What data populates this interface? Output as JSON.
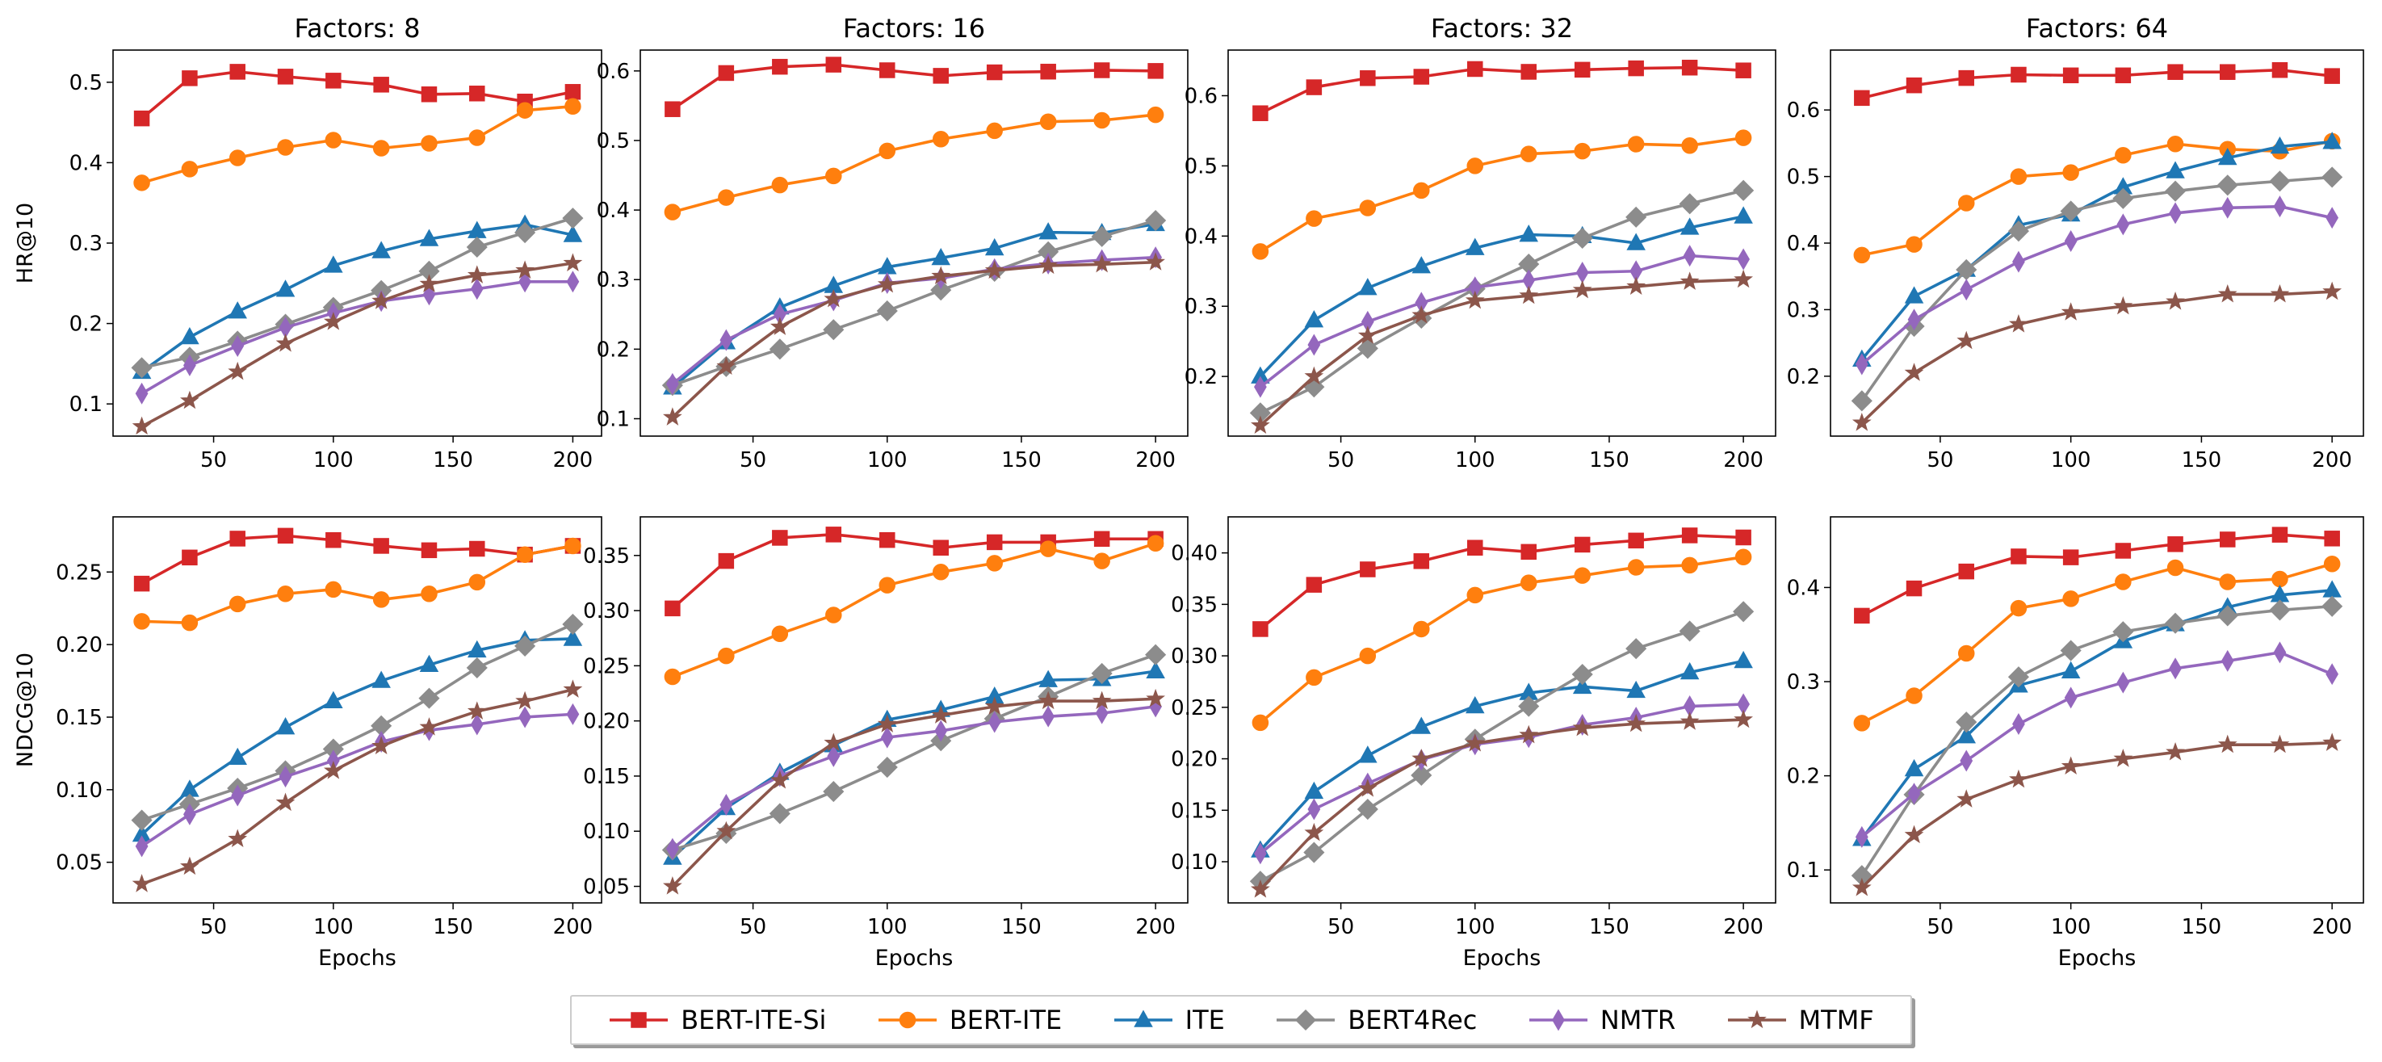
{
  "chart_data": {
    "type": "line",
    "x": [
      20,
      40,
      60,
      80,
      100,
      120,
      140,
      160,
      180,
      200
    ],
    "xlabel": "Epochs",
    "xlim": [
      8,
      212
    ],
    "xticks": [
      50,
      100,
      150,
      200
    ],
    "legend_position": "bottom-center",
    "series_styles": [
      {
        "name": "BERT-ITE-Si",
        "color": "#d62728",
        "marker": "square"
      },
      {
        "name": "BERT-ITE",
        "color": "#ff7f0e",
        "marker": "circle"
      },
      {
        "name": "ITE",
        "color": "#1f77b4",
        "marker": "triangle"
      },
      {
        "name": "BERT4Rec",
        "color": "#8c8c8c",
        "marker": "diamond"
      },
      {
        "name": "NMTR",
        "color": "#9467bd",
        "marker": "thin-diamond"
      },
      {
        "name": "MTMF",
        "color": "#8c564b",
        "marker": "star"
      }
    ],
    "panels": [
      {
        "title": "Factors: 8",
        "ylabel": "HR@10",
        "ylim": [
          0.06,
          0.54
        ],
        "yticks": [
          "0.1",
          "0.2",
          "0.3",
          "0.4",
          "0.5"
        ],
        "series": [
          {
            "name": "BERT-ITE-Si",
            "values": [
              0.455,
              0.505,
              0.513,
              0.507,
              0.502,
              0.497,
              0.485,
              0.486,
              0.476,
              0.488
            ]
          },
          {
            "name": "BERT-ITE",
            "values": [
              0.375,
              0.392,
              0.406,
              0.419,
              0.428,
              0.418,
              0.424,
              0.431,
              0.465,
              0.47
            ]
          },
          {
            "name": "ITE",
            "values": [
              0.14,
              0.183,
              0.215,
              0.242,
              0.272,
              0.29,
              0.305,
              0.315,
              0.323,
              0.31
            ]
          },
          {
            "name": "BERT4Rec",
            "values": [
              0.145,
              0.158,
              0.178,
              0.199,
              0.22,
              0.241,
              0.265,
              0.295,
              0.313,
              0.331
            ]
          },
          {
            "name": "NMTR",
            "values": [
              0.113,
              0.148,
              0.172,
              0.195,
              0.213,
              0.228,
              0.236,
              0.243,
              0.252,
              0.252
            ]
          },
          {
            "name": "MTMF",
            "values": [
              0.072,
              0.104,
              0.14,
              0.175,
              0.202,
              0.228,
              0.249,
              0.26,
              0.266,
              0.275
            ]
          }
        ]
      },
      {
        "title": "Factors: 16",
        "ylabel": "",
        "ylim": [
          0.075,
          0.63
        ],
        "yticks": [
          "0.1",
          "0.2",
          "0.3",
          "0.4",
          "0.5",
          "0.6"
        ],
        "series": [
          {
            "name": "BERT-ITE-Si",
            "values": [
              0.545,
              0.597,
              0.606,
              0.609,
              0.601,
              0.593,
              0.598,
              0.599,
              0.601,
              0.6
            ]
          },
          {
            "name": "BERT-ITE",
            "values": [
              0.397,
              0.418,
              0.436,
              0.449,
              0.485,
              0.502,
              0.514,
              0.527,
              0.529,
              0.537
            ]
          },
          {
            "name": "ITE",
            "values": [
              0.145,
              0.21,
              0.26,
              0.291,
              0.318,
              0.331,
              0.345,
              0.368,
              0.367,
              0.38
            ]
          },
          {
            "name": "BERT4Rec",
            "values": [
              0.148,
              0.175,
              0.2,
              0.228,
              0.255,
              0.285,
              0.312,
              0.34,
              0.362,
              0.385
            ]
          },
          {
            "name": "NMTR",
            "values": [
              0.15,
              0.213,
              0.25,
              0.27,
              0.295,
              0.302,
              0.315,
              0.323,
              0.328,
              0.332
            ]
          },
          {
            "name": "MTMF",
            "values": [
              0.102,
              0.175,
              0.232,
              0.272,
              0.293,
              0.305,
              0.313,
              0.32,
              0.322,
              0.325
            ]
          }
        ]
      },
      {
        "title": "Factors: 32",
        "ylabel": "",
        "ylim": [
          0.115,
          0.665
        ],
        "yticks": [
          "0.2",
          "0.3",
          "0.4",
          "0.5",
          "0.6"
        ],
        "series": [
          {
            "name": "BERT-ITE-Si",
            "values": [
              0.575,
              0.612,
              0.625,
              0.627,
              0.638,
              0.634,
              0.637,
              0.639,
              0.64,
              0.636
            ]
          },
          {
            "name": "BERT-ITE",
            "values": [
              0.378,
              0.425,
              0.44,
              0.465,
              0.5,
              0.517,
              0.521,
              0.531,
              0.529,
              0.54
            ]
          },
          {
            "name": "ITE",
            "values": [
              0.2,
              0.28,
              0.326,
              0.357,
              0.383,
              0.402,
              0.4,
              0.39,
              0.412,
              0.428
            ]
          },
          {
            "name": "BERT4Rec",
            "values": [
              0.148,
              0.185,
              0.24,
              0.283,
              0.325,
              0.36,
              0.397,
              0.427,
              0.446,
              0.465
            ]
          },
          {
            "name": "NMTR",
            "values": [
              0.185,
              0.245,
              0.278,
              0.305,
              0.327,
              0.337,
              0.348,
              0.35,
              0.372,
              0.367
            ]
          },
          {
            "name": "MTMF",
            "values": [
              0.13,
              0.2,
              0.258,
              0.287,
              0.308,
              0.315,
              0.323,
              0.328,
              0.335,
              0.338
            ]
          }
        ]
      },
      {
        "title": "Factors: 64",
        "ylabel": "",
        "ylim": [
          0.11,
          0.69
        ],
        "yticks": [
          "0.2",
          "0.3",
          "0.4",
          "0.5",
          "0.6"
        ],
        "series": [
          {
            "name": "BERT-ITE-Si",
            "values": [
              0.618,
              0.637,
              0.648,
              0.653,
              0.652,
              0.652,
              0.657,
              0.657,
              0.66,
              0.651
            ]
          },
          {
            "name": "BERT-ITE",
            "values": [
              0.382,
              0.398,
              0.46,
              0.5,
              0.506,
              0.532,
              0.549,
              0.541,
              0.538,
              0.553
            ]
          },
          {
            "name": "ITE",
            "values": [
              0.225,
              0.32,
              0.36,
              0.427,
              0.443,
              0.484,
              0.508,
              0.528,
              0.545,
              0.552
            ]
          },
          {
            "name": "BERT4Rec",
            "values": [
              0.163,
              0.275,
              0.36,
              0.418,
              0.448,
              0.467,
              0.478,
              0.487,
              0.493,
              0.499
            ]
          },
          {
            "name": "NMTR",
            "values": [
              0.218,
              0.285,
              0.33,
              0.372,
              0.403,
              0.428,
              0.445,
              0.453,
              0.455,
              0.438
            ]
          },
          {
            "name": "MTMF",
            "values": [
              0.13,
              0.205,
              0.253,
              0.278,
              0.296,
              0.305,
              0.312,
              0.323,
              0.323,
              0.327
            ]
          }
        ]
      },
      {
        "title": "",
        "ylabel": "NDCG@10",
        "ylim": [
          0.022,
          0.288
        ],
        "yticks": [
          "0.05",
          "0.10",
          "0.15",
          "0.20",
          "0.25"
        ],
        "series": [
          {
            "name": "BERT-ITE-Si",
            "values": [
              0.242,
              0.26,
              0.273,
              0.275,
              0.272,
              0.268,
              0.265,
              0.266,
              0.262,
              0.268
            ]
          },
          {
            "name": "BERT-ITE",
            "values": [
              0.216,
              0.215,
              0.228,
              0.235,
              0.238,
              0.231,
              0.235,
              0.243,
              0.262,
              0.268
            ]
          },
          {
            "name": "ITE",
            "values": [
              0.069,
              0.1,
              0.122,
              0.143,
              0.161,
              0.175,
              0.186,
              0.196,
              0.203,
              0.204
            ]
          },
          {
            "name": "BERT4Rec",
            "values": [
              0.079,
              0.09,
              0.101,
              0.113,
              0.128,
              0.144,
              0.163,
              0.184,
              0.199,
              0.214
            ]
          },
          {
            "name": "NMTR",
            "values": [
              0.061,
              0.083,
              0.096,
              0.109,
              0.12,
              0.133,
              0.141,
              0.145,
              0.15,
              0.152
            ]
          },
          {
            "name": "MTMF",
            "values": [
              0.035,
              0.047,
              0.066,
              0.091,
              0.113,
              0.13,
              0.143,
              0.154,
              0.161,
              0.169
            ]
          }
        ]
      },
      {
        "title": "",
        "ylabel": "",
        "ylim": [
          0.035,
          0.385
        ],
        "yticks": [
          "0.05",
          "0.10",
          "0.15",
          "0.20",
          "0.25",
          "0.30",
          "0.35"
        ],
        "series": [
          {
            "name": "BERT-ITE-Si",
            "values": [
              0.302,
              0.345,
              0.366,
              0.369,
              0.364,
              0.357,
              0.362,
              0.362,
              0.365,
              0.365
            ]
          },
          {
            "name": "BERT-ITE",
            "values": [
              0.24,
              0.259,
              0.279,
              0.296,
              0.323,
              0.335,
              0.343,
              0.356,
              0.345,
              0.361
            ]
          },
          {
            "name": "ITE",
            "values": [
              0.076,
              0.121,
              0.153,
              0.178,
              0.201,
              0.21,
              0.222,
              0.237,
              0.238,
              0.245
            ]
          },
          {
            "name": "BERT4Rec",
            "values": [
              0.083,
              0.098,
              0.116,
              0.136,
              0.158,
              0.182,
              0.202,
              0.222,
              0.243,
              0.26
            ]
          },
          {
            "name": "NMTR",
            "values": [
              0.084,
              0.124,
              0.15,
              0.168,
              0.185,
              0.191,
              0.199,
              0.204,
              0.207,
              0.213
            ]
          },
          {
            "name": "MTMF",
            "values": [
              0.05,
              0.1,
              0.146,
              0.18,
              0.197,
              0.205,
              0.213,
              0.218,
              0.218,
              0.22
            ]
          }
        ]
      },
      {
        "title": "",
        "ylabel": "",
        "ylim": [
          0.06,
          0.435
        ],
        "yticks": [
          "0.10",
          "0.15",
          "0.20",
          "0.25",
          "0.30",
          "0.35",
          "0.40"
        ],
        "series": [
          {
            "name": "BERT-ITE-Si",
            "values": [
              0.326,
              0.369,
              0.384,
              0.392,
              0.405,
              0.401,
              0.408,
              0.412,
              0.417,
              0.415
            ]
          },
          {
            "name": "BERT-ITE",
            "values": [
              0.235,
              0.279,
              0.3,
              0.326,
              0.359,
              0.371,
              0.378,
              0.386,
              0.388,
              0.396
            ]
          },
          {
            "name": "ITE",
            "values": [
              0.111,
              0.168,
              0.203,
              0.231,
              0.251,
              0.264,
              0.27,
              0.266,
              0.284,
              0.295
            ]
          },
          {
            "name": "BERT4Rec",
            "values": [
              0.081,
              0.109,
              0.151,
              0.184,
              0.219,
              0.251,
              0.282,
              0.307,
              0.324,
              0.343
            ]
          },
          {
            "name": "NMTR",
            "values": [
              0.108,
              0.151,
              0.176,
              0.199,
              0.214,
              0.221,
              0.233,
              0.24,
              0.251,
              0.253
            ]
          },
          {
            "name": "MTMF",
            "values": [
              0.073,
              0.128,
              0.171,
              0.2,
              0.215,
              0.223,
              0.23,
              0.234,
              0.236,
              0.238
            ]
          }
        ]
      },
      {
        "title": "",
        "ylabel": "",
        "ylim": [
          0.065,
          0.475
        ],
        "yticks": [
          "0.1",
          "0.2",
          "0.3",
          "0.4"
        ],
        "series": [
          {
            "name": "BERT-ITE-Si",
            "values": [
              0.37,
              0.399,
              0.417,
              0.433,
              0.432,
              0.439,
              0.446,
              0.451,
              0.456,
              0.452
            ]
          },
          {
            "name": "BERT-ITE",
            "values": [
              0.256,
              0.285,
              0.33,
              0.378,
              0.388,
              0.406,
              0.421,
              0.406,
              0.409,
              0.425
            ]
          },
          {
            "name": "ITE",
            "values": [
              0.133,
              0.207,
              0.242,
              0.296,
              0.311,
              0.343,
              0.361,
              0.379,
              0.392,
              0.397
            ]
          },
          {
            "name": "BERT4Rec",
            "values": [
              0.094,
              0.18,
              0.257,
              0.305,
              0.333,
              0.353,
              0.362,
              0.37,
              0.376,
              0.38
            ]
          },
          {
            "name": "NMTR",
            "values": [
              0.135,
              0.181,
              0.216,
              0.255,
              0.283,
              0.299,
              0.314,
              0.322,
              0.331,
              0.308
            ]
          },
          {
            "name": "MTMF",
            "values": [
              0.081,
              0.137,
              0.175,
              0.196,
              0.21,
              0.218,
              0.225,
              0.233,
              0.233,
              0.235
            ]
          }
        ]
      }
    ]
  }
}
